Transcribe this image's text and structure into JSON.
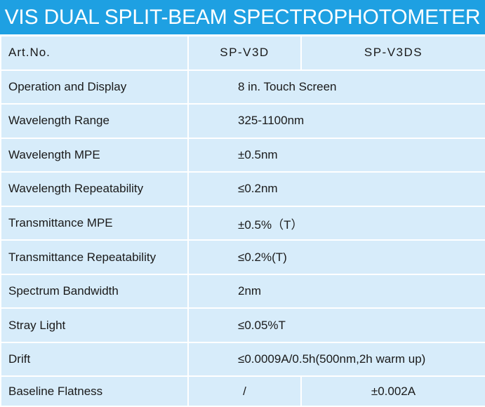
{
  "title": "VIS DUAL SPLIT-BEAM SPECTROPHOTOMETER",
  "header": {
    "label": "Art.No.",
    "model_a": "SP-V3D",
    "model_b": "SP-V3DS"
  },
  "rows": [
    {
      "label": "Operation and Display",
      "value": "8 in. Touch Screen"
    },
    {
      "label": "Wavelength Range",
      "value": "325-1100nm"
    },
    {
      "label": "Wavelength MPE",
      "value": "±0.5nm"
    },
    {
      "label": "Wavelength Repeatability",
      "value": "≤0.2nm"
    },
    {
      "label": "Transmittance MPE",
      "value": "±0.5%（T）"
    },
    {
      "label": "Transmittance Repeatability",
      "value": "≤0.2%(T)"
    },
    {
      "label": "Spectrum Bandwidth",
      "value": "2nm"
    },
    {
      "label": "Stray Light",
      "value": "≤0.05%T"
    },
    {
      "label": "Drift",
      "value": "≤0.0009A/0.5h(500nm,2h warm up)"
    }
  ],
  "baseline": {
    "label": "Baseline Flatness",
    "value_a": "/",
    "value_b": "±0.002A"
  },
  "colors": {
    "title_bar": "#1ea0e2",
    "cell_background": "#d7ecfa",
    "grid_lines": "#ffffff",
    "text": "#1a1a1a"
  }
}
